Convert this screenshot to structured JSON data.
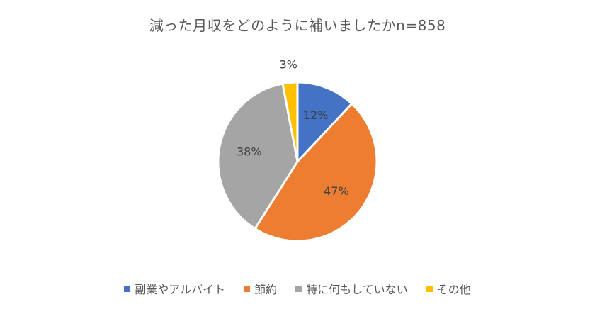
{
  "chart_data": {
    "type": "pie",
    "title": "減った月収をどのように補いましたかn=858",
    "categories": [
      "副業やアルバイト",
      "節約",
      "特に何もしていない",
      "その他"
    ],
    "values": [
      12,
      47,
      38,
      3
    ],
    "data_labels": [
      "12%",
      "47%",
      "38%",
      "3%"
    ],
    "colors": [
      "#4472C4",
      "#ED7D31",
      "#A5A5A5",
      "#FFC000"
    ],
    "legend_position": "bottom"
  }
}
